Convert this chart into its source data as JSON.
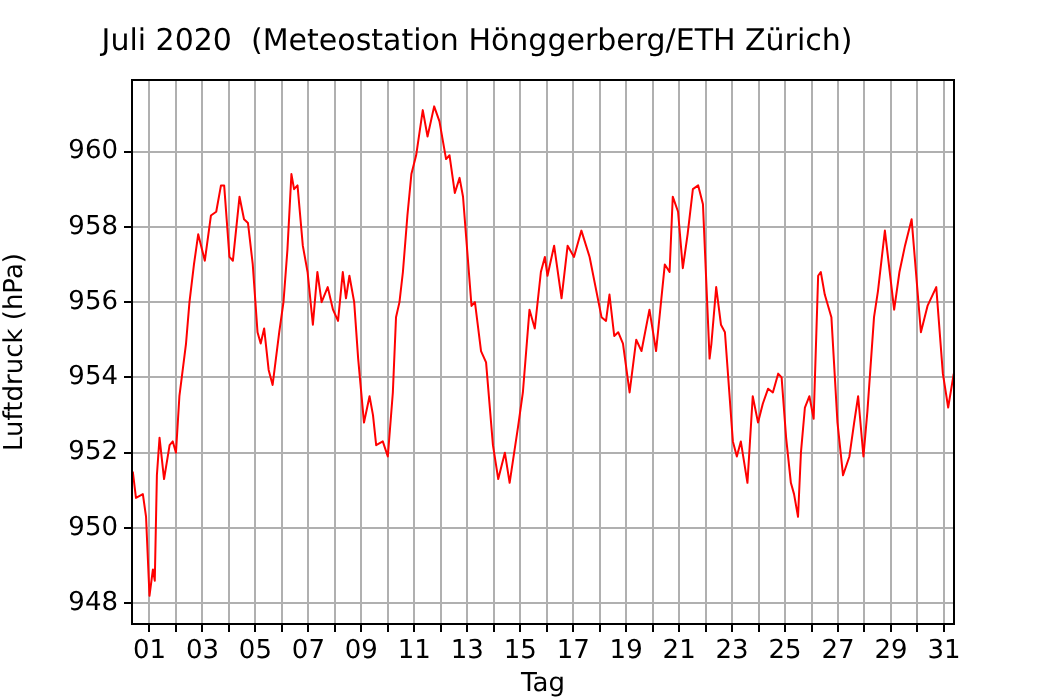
{
  "chart_data": {
    "type": "line",
    "title": "Juli 2020  (Meteostation Hönggerberg/ETH Zürich)",
    "xlabel": "Tag",
    "ylabel": "Luftdruck (hPa)",
    "x": [
      0.37,
      0.49,
      0.75,
      0.87,
      1.0,
      1.13,
      1.2,
      1.28,
      1.38,
      1.55,
      1.76,
      1.88,
      2.0,
      2.13,
      2.38,
      2.51,
      2.68,
      2.84,
      3.09,
      3.32,
      3.52,
      3.7,
      3.82,
      4.02,
      4.15,
      4.4,
      4.57,
      4.72,
      4.9,
      5.08,
      5.2,
      5.33,
      5.5,
      5.65,
      5.9,
      6.06,
      6.21,
      6.36,
      6.46,
      6.59,
      6.79,
      6.97,
      7.17,
      7.34,
      7.5,
      7.73,
      7.93,
      8.12,
      8.3,
      8.42,
      8.55,
      8.73,
      8.88,
      9.1,
      9.31,
      9.44,
      9.56,
      9.81,
      10.0,
      10.19,
      10.31,
      10.44,
      10.57,
      10.74,
      10.89,
      11.07,
      11.32,
      11.5,
      11.75,
      11.95,
      12.2,
      12.33,
      12.53,
      12.71,
      12.84,
      13.16,
      13.29,
      13.52,
      13.71,
      13.97,
      14.17,
      14.42,
      14.6,
      14.92,
      15.1,
      15.35,
      15.55,
      15.78,
      15.93,
      16.03,
      16.28,
      16.56,
      16.79,
      17.03,
      17.31,
      17.62,
      18.07,
      18.24,
      18.37,
      18.55,
      18.7,
      18.88,
      19.13,
      19.38,
      19.58,
      19.88,
      20.13,
      20.46,
      20.64,
      20.76,
      20.96,
      21.14,
      21.32,
      21.52,
      21.72,
      21.9,
      22.15,
      22.22,
      22.4,
      22.58,
      22.73,
      23.03,
      23.18,
      23.33,
      23.58,
      23.78,
      23.98,
      24.16,
      24.36,
      24.54,
      24.74,
      24.87,
      25.04,
      25.22,
      25.34,
      25.49,
      25.6,
      25.75,
      25.92,
      26.08,
      26.25,
      26.35,
      26.5,
      26.75,
      26.98,
      27.19,
      27.43,
      27.61,
      27.76,
      27.96,
      28.11,
      28.36,
      28.51,
      28.77,
      29.12,
      29.32,
      29.53,
      29.78,
      30.13,
      30.38,
      30.71,
      30.96,
      31.16,
      31.37
    ],
    "series": [
      {
        "color": "#ff0000",
        "values": [
          951.5,
          950.8,
          950.9,
          950.3,
          948.2,
          948.9,
          948.6,
          951.4,
          952.4,
          951.3,
          952.2,
          952.3,
          952.0,
          953.5,
          954.9,
          956.0,
          957.0,
          957.8,
          957.1,
          958.3,
          958.4,
          959.1,
          959.1,
          957.2,
          957.1,
          958.8,
          958.2,
          958.1,
          957.0,
          955.2,
          954.9,
          955.3,
          954.2,
          953.8,
          955.2,
          956.0,
          957.4,
          959.4,
          959.0,
          959.1,
          957.5,
          956.8,
          955.4,
          956.8,
          956.0,
          956.4,
          955.8,
          955.5,
          956.8,
          956.1,
          956.7,
          956.0,
          954.5,
          952.8,
          953.5,
          953.0,
          952.2,
          952.3,
          951.9,
          953.6,
          955.6,
          956.0,
          956.8,
          958.3,
          959.4,
          959.9,
          961.1,
          960.4,
          961.2,
          960.8,
          959.8,
          959.9,
          958.9,
          959.3,
          958.8,
          955.9,
          956.0,
          954.7,
          954.4,
          952.2,
          951.3,
          952.0,
          951.2,
          952.7,
          953.6,
          955.8,
          955.3,
          956.8,
          957.2,
          956.7,
          957.5,
          956.1,
          957.5,
          957.2,
          957.9,
          957.2,
          955.6,
          955.5,
          956.2,
          955.1,
          955.2,
          954.9,
          953.6,
          955.0,
          954.7,
          955.8,
          954.7,
          957.0,
          956.8,
          958.8,
          958.4,
          956.9,
          957.8,
          959.0,
          959.1,
          958.6,
          954.5,
          954.9,
          956.4,
          955.4,
          955.2,
          952.3,
          951.9,
          952.3,
          951.2,
          953.5,
          952.8,
          953.3,
          953.7,
          953.6,
          954.1,
          954.0,
          952.4,
          951.2,
          950.9,
          950.3,
          952.0,
          953.2,
          953.5,
          952.9,
          956.7,
          956.8,
          956.2,
          955.6,
          952.8,
          951.4,
          951.9,
          952.8,
          953.5,
          951.9,
          953.1,
          955.6,
          956.3,
          957.9,
          955.8,
          956.8,
          957.5,
          958.2,
          955.2,
          955.9,
          956.4,
          954.1,
          953.2,
          954.1
        ]
      }
    ],
    "xlim": [
      0.34,
      31.38
    ],
    "ylim": [
      947.45,
      961.9
    ],
    "xticks": [
      {
        "value": 1,
        "label": "01"
      },
      {
        "value": 2,
        "label": null
      },
      {
        "value": 3,
        "label": "03"
      },
      {
        "value": 4,
        "label": null
      },
      {
        "value": 5,
        "label": "05"
      },
      {
        "value": 6,
        "label": null
      },
      {
        "value": 7,
        "label": "07"
      },
      {
        "value": 8,
        "label": null
      },
      {
        "value": 9,
        "label": "09"
      },
      {
        "value": 10,
        "label": null
      },
      {
        "value": 11,
        "label": "11"
      },
      {
        "value": 12,
        "label": null
      },
      {
        "value": 13,
        "label": "13"
      },
      {
        "value": 14,
        "label": null
      },
      {
        "value": 15,
        "label": "15"
      },
      {
        "value": 16,
        "label": null
      },
      {
        "value": 17,
        "label": "17"
      },
      {
        "value": 18,
        "label": null
      },
      {
        "value": 19,
        "label": "19"
      },
      {
        "value": 20,
        "label": null
      },
      {
        "value": 21,
        "label": "21"
      },
      {
        "value": 22,
        "label": null
      },
      {
        "value": 23,
        "label": "23"
      },
      {
        "value": 24,
        "label": null
      },
      {
        "value": 25,
        "label": "25"
      },
      {
        "value": 26,
        "label": null
      },
      {
        "value": 27,
        "label": "27"
      },
      {
        "value": 28,
        "label": null
      },
      {
        "value": 29,
        "label": "29"
      },
      {
        "value": 30,
        "label": null
      },
      {
        "value": 31,
        "label": "31"
      }
    ],
    "yticks": [
      948,
      950,
      952,
      954,
      956,
      958,
      960
    ],
    "grid": true,
    "legend": false,
    "marker": "none",
    "line_style": "solid"
  }
}
